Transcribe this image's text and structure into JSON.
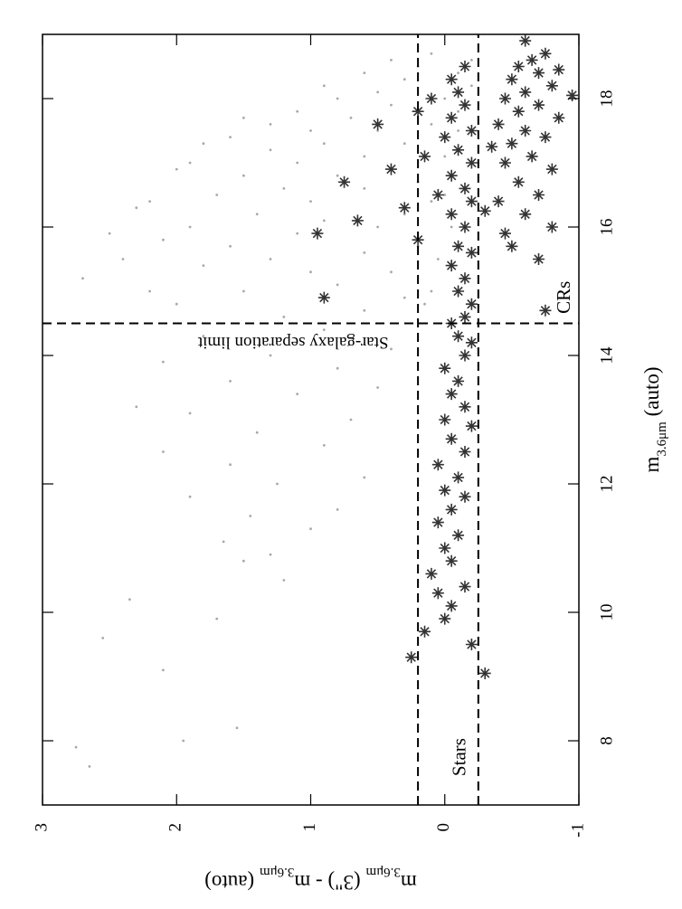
{
  "chart_data": {
    "type": "scatter",
    "x_label": [
      {
        "text": "m"
      },
      {
        "text": "3.6μm",
        "sub": true
      },
      {
        "text": " (auto)"
      }
    ],
    "y_label": [
      {
        "text": "m"
      },
      {
        "text": "3.6μm",
        "sub": true
      },
      {
        "text": " (3\") - m"
      },
      {
        "text": "3.6μm",
        "sub": true
      },
      {
        "text": " (auto)"
      }
    ],
    "xlim": [
      7,
      19
    ],
    "ylim": [
      -1,
      3
    ],
    "xticks": [
      8,
      10,
      12,
      14,
      16,
      18
    ],
    "yticks": [
      -1,
      0,
      1,
      2,
      3
    ],
    "hlines": [
      0.2,
      -0.25
    ],
    "vline": 14.5,
    "annotations": [
      "Star-galaxy separation limit",
      "Stars",
      "CRs"
    ],
    "series": [
      {
        "marker": "dot",
        "color": "#a8a8a8",
        "x": [
          7.6,
          7.9,
          8.2,
          8.0,
          9.1,
          9.6,
          9.9,
          10.2,
          10.5,
          10.8,
          10.9,
          11.1,
          11.3,
          11.5,
          11.6,
          11.8,
          12.0,
          12.1,
          12.3,
          12.5,
          12.6,
          12.8,
          13.0,
          13.1,
          13.2,
          13.4,
          13.5,
          13.6,
          13.8,
          13.9,
          14.0,
          14.1,
          14.3,
          14.4,
          14.5,
          14.6,
          14.7,
          14.8,
          14.9,
          15.0,
          15.0,
          15.1,
          15.2,
          15.3,
          15.3,
          15.4,
          15.5,
          15.5,
          15.6,
          15.7,
          15.7,
          15.8,
          15.9,
          16.0,
          16.0,
          16.1,
          16.2,
          16.2,
          16.3,
          16.4,
          16.4,
          16.5,
          16.6,
          16.6,
          16.7,
          16.8,
          16.8,
          16.9,
          17.0,
          17.0,
          17.1,
          17.1,
          17.2,
          17.3,
          17.3,
          17.4,
          17.5,
          17.5,
          17.6,
          17.6,
          17.7,
          17.8,
          17.8,
          17.9,
          18.0,
          18.0,
          18.1,
          18.2,
          18.2,
          18.3,
          18.4,
          18.4,
          18.5,
          18.6,
          18.6,
          18.7,
          16.5,
          17.0,
          17.5,
          16.0,
          15.5,
          15.0,
          14.8,
          16.9,
          16.4,
          17.3,
          15.9,
          17.7
        ],
        "y": [
          2.65,
          2.75,
          1.55,
          1.95,
          2.1,
          2.55,
          1.7,
          2.35,
          1.2,
          1.5,
          1.3,
          1.65,
          1.0,
          1.45,
          0.8,
          1.9,
          1.25,
          0.6,
          1.6,
          2.1,
          0.9,
          1.4,
          0.7,
          1.9,
          2.3,
          1.1,
          0.5,
          1.6,
          0.8,
          2.1,
          1.3,
          0.4,
          1.8,
          0.9,
          2.5,
          1.2,
          0.6,
          2.0,
          0.3,
          1.5,
          2.2,
          0.8,
          2.7,
          1.0,
          0.4,
          1.8,
          1.3,
          2.4,
          0.6,
          1.6,
          0.2,
          2.1,
          1.1,
          0.5,
          1.9,
          0.9,
          1.4,
          0.3,
          2.3,
          1.0,
          0.1,
          1.7,
          0.6,
          1.2,
          0.2,
          1.5,
          0.8,
          0.4,
          1.9,
          1.1,
          0.0,
          0.6,
          1.3,
          0.9,
          0.3,
          1.6,
          0.5,
          1.0,
          0.1,
          1.3,
          0.7,
          -0.1,
          1.1,
          0.4,
          0.8,
          0.0,
          0.5,
          -0.2,
          0.9,
          0.3,
          0.6,
          -0.1,
          0.2,
          0.4,
          -0.2,
          0.1,
          0.0,
          -0.2,
          -0.1,
          -0.05,
          0.05,
          0.1,
          0.15,
          2.0,
          2.2,
          1.8,
          2.5,
          1.5
        ]
      },
      {
        "marker": "asterisk",
        "color": "#333333",
        "x": [
          9.05,
          9.3,
          9.5,
          9.7,
          9.9,
          10.1,
          10.3,
          10.4,
          10.6,
          10.8,
          11.0,
          11.2,
          11.4,
          11.6,
          11.8,
          11.9,
          12.1,
          12.3,
          12.5,
          12.7,
          12.9,
          13.0,
          13.2,
          13.4,
          13.6,
          13.8,
          14.0,
          14.2,
          14.3,
          14.5,
          14.6,
          14.8,
          15.0,
          15.2,
          15.4,
          15.6,
          15.7,
          15.8,
          15.9,
          16.0,
          16.1,
          16.2,
          16.3,
          16.4,
          16.5,
          16.6,
          16.7,
          16.8,
          16.9,
          17.0,
          17.1,
          17.2,
          17.4,
          17.5,
          17.6,
          17.7,
          17.8,
          17.9,
          18.0,
          18.1,
          18.3,
          18.5,
          14.7,
          15.5,
          15.7,
          15.9,
          16.0,
          16.2,
          16.4,
          16.5,
          16.7,
          16.9,
          17.0,
          17.1,
          17.3,
          17.4,
          17.5,
          17.6,
          17.7,
          17.8,
          17.9,
          18.0,
          18.1,
          18.2,
          18.3,
          18.4,
          18.5,
          18.6,
          18.7,
          18.9,
          18.05,
          18.45,
          16.25,
          17.25,
          14.9
        ],
        "y": [
          -0.3,
          0.25,
          -0.2,
          0.15,
          0.0,
          -0.05,
          0.05,
          -0.15,
          0.1,
          -0.05,
          0.0,
          -0.1,
          0.05,
          -0.05,
          -0.15,
          0.0,
          -0.1,
          0.05,
          -0.15,
          -0.05,
          -0.2,
          0.0,
          -0.15,
          -0.05,
          -0.1,
          0.0,
          -0.15,
          -0.2,
          -0.1,
          -0.05,
          -0.15,
          -0.2,
          -0.1,
          -0.15,
          -0.05,
          -0.2,
          -0.1,
          0.2,
          0.95,
          -0.15,
          0.65,
          -0.05,
          0.3,
          -0.2,
          0.05,
          -0.15,
          0.75,
          -0.05,
          0.4,
          -0.2,
          0.15,
          -0.1,
          0.0,
          -0.2,
          0.5,
          -0.05,
          0.2,
          -0.15,
          0.1,
          -0.1,
          -0.05,
          -0.15,
          -0.75,
          -0.7,
          -0.5,
          -0.45,
          -0.8,
          -0.6,
          -0.4,
          -0.7,
          -0.55,
          -0.8,
          -0.45,
          -0.65,
          -0.5,
          -0.75,
          -0.6,
          -0.4,
          -0.85,
          -0.55,
          -0.7,
          -0.45,
          -0.6,
          -0.8,
          -0.5,
          -0.7,
          -0.55,
          -0.65,
          -0.75,
          -0.6,
          -0.95,
          -0.85,
          -0.3,
          -0.35,
          0.9
        ]
      }
    ]
  }
}
